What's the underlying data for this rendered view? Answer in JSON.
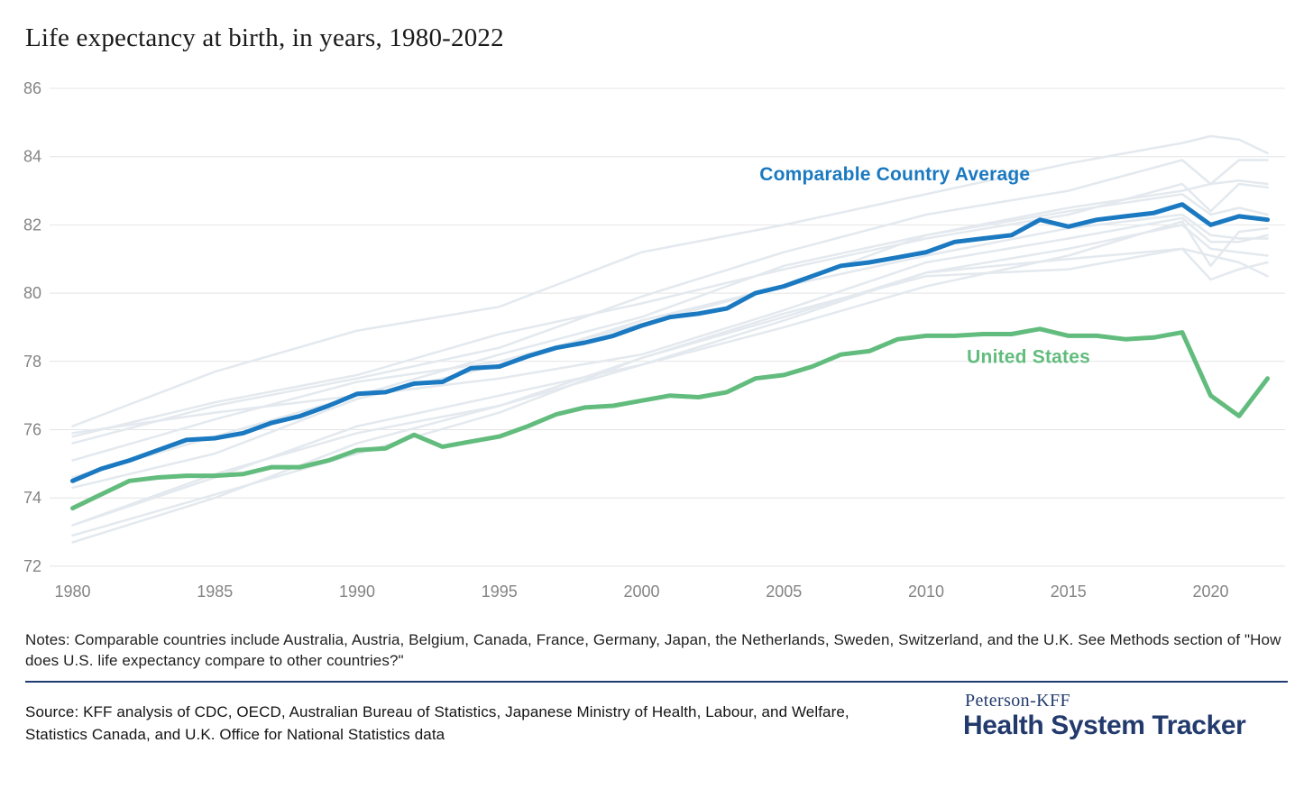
{
  "title": "Life expectancy at birth, in years, 1980-2022",
  "notes": "Notes: Comparable countries include Australia, Austria, Belgium, Canada, France, Germany, Japan, the Netherlands, Sweden, Switzerland, and the U.K. See Methods section of \"How does U.S. life expectancy compare to other countries?\"",
  "source": "Source: KFF analysis of CDC, OECD, Australian Bureau of Statistics, Japanese Ministry of Health, Labour, and Welfare, Statistics Canada, and U.K. Office for National Statistics data",
  "branding": {
    "top": "Peterson-KFF",
    "bottom": "Health System Tracker"
  },
  "colors": {
    "accent_blue": "#1a79c0",
    "accent_green": "#62bc7d",
    "background_line": "#e3e9ee",
    "gridline": "#e4e4e4",
    "tick_label": "#848484",
    "divider_navy": "#1e3c6e",
    "brand_navy": "#223a6c"
  },
  "chart_data": {
    "type": "line",
    "title": "Life expectancy at birth, in years, 1980-2022",
    "xlabel": "",
    "ylabel": "",
    "xlim": [
      1980,
      2022
    ],
    "ylim": [
      72,
      86
    ],
    "grid": "horizontal",
    "legend_position": "inline-annotations",
    "yticks": [
      86,
      84,
      82,
      80,
      78,
      76,
      74,
      72
    ],
    "xticks": [
      1980,
      1985,
      1990,
      1995,
      2000,
      2005,
      2010,
      2015,
      2020
    ],
    "x": [
      1980,
      1981,
      1982,
      1983,
      1984,
      1985,
      1986,
      1987,
      1988,
      1989,
      1990,
      1991,
      1992,
      1993,
      1994,
      1995,
      1996,
      1997,
      1998,
      1999,
      2000,
      2001,
      2002,
      2003,
      2004,
      2005,
      2006,
      2007,
      2008,
      2009,
      2010,
      2011,
      2012,
      2013,
      2014,
      2015,
      2016,
      2017,
      2018,
      2019,
      2020,
      2021,
      2022
    ],
    "series": [
      {
        "name": "Comparable Country Average",
        "color": "#1a79c0",
        "values": [
          74.5,
          74.85,
          75.1,
          75.4,
          75.7,
          75.75,
          75.9,
          76.2,
          76.4,
          76.7,
          77.05,
          77.1,
          77.35,
          77.4,
          77.8,
          77.85,
          78.15,
          78.4,
          78.55,
          78.75,
          79.05,
          79.3,
          79.4,
          79.55,
          80.0,
          80.2,
          80.5,
          80.8,
          80.9,
          81.05,
          81.2,
          81.5,
          81.6,
          81.7,
          82.15,
          81.95,
          82.15,
          82.25,
          82.35,
          82.6,
          82.0,
          82.25,
          82.15
        ]
      },
      {
        "name": "United States",
        "color": "#62bc7d",
        "values": [
          73.7,
          74.1,
          74.5,
          74.6,
          74.65,
          74.65,
          74.7,
          74.9,
          74.9,
          75.1,
          75.4,
          75.45,
          75.85,
          75.5,
          75.65,
          75.8,
          76.1,
          76.45,
          76.65,
          76.7,
          76.85,
          77.0,
          76.95,
          77.1,
          77.5,
          77.6,
          77.85,
          78.2,
          78.3,
          78.65,
          78.75,
          78.75,
          78.8,
          78.8,
          78.95,
          78.75,
          78.75,
          78.65,
          78.7,
          78.85,
          77.0,
          76.4,
          77.5
        ]
      }
    ],
    "background_series": {
      "description": "Individual comparable countries (unlabeled light lines)",
      "color": "#e3e9ee",
      "keypoint_years": [
        1980,
        1985,
        1990,
        1995,
        2000,
        2005,
        2010,
        2015,
        2019,
        2020,
        2021,
        2022
      ],
      "countries": [
        {
          "name": "Japan",
          "values": [
            76.1,
            77.7,
            78.9,
            79.6,
            81.2,
            82.0,
            82.9,
            83.8,
            84.4,
            84.6,
            84.5,
            84.1
          ]
        },
        {
          "name": "Switzerland",
          "values": [
            75.6,
            76.7,
            77.5,
            78.4,
            79.9,
            81.2,
            82.3,
            83.0,
            83.9,
            83.2,
            83.9,
            83.9
          ]
        },
        {
          "name": "Sweden",
          "values": [
            75.8,
            76.8,
            77.6,
            78.8,
            79.7,
            80.7,
            81.6,
            82.3,
            83.2,
            82.4,
            83.2,
            83.1
          ]
        },
        {
          "name": "Netherlands",
          "values": [
            75.9,
            76.5,
            77.0,
            77.5,
            78.2,
            79.5,
            80.9,
            81.6,
            82.2,
            81.5,
            81.5,
            81.7
          ]
        },
        {
          "name": "Australia",
          "values": [
            74.6,
            75.8,
            77.0,
            78.2,
            79.3,
            80.8,
            81.7,
            82.5,
            83.0,
            83.2,
            83.3,
            83.2
          ]
        },
        {
          "name": "France",
          "values": [
            74.3,
            75.3,
            76.9,
            77.9,
            79.2,
            80.2,
            81.7,
            82.4,
            82.9,
            82.3,
            82.5,
            82.3
          ]
        },
        {
          "name": "Canada",
          "values": [
            75.1,
            76.3,
            77.4,
            78.0,
            79.1,
            80.2,
            81.1,
            81.9,
            82.3,
            81.7,
            81.6,
            81.6
          ]
        },
        {
          "name": "Belgium",
          "values": [
            73.2,
            74.6,
            76.1,
            77.0,
            77.9,
            79.0,
            80.2,
            81.1,
            82.1,
            80.8,
            81.8,
            81.9
          ]
        },
        {
          "name": "Austria",
          "values": [
            72.7,
            74.0,
            75.6,
            76.7,
            78.1,
            79.3,
            80.6,
            81.3,
            82.0,
            81.3,
            81.2,
            81.1
          ]
        },
        {
          "name": "Germany",
          "values": [
            72.9,
            74.1,
            75.3,
            76.5,
            78.1,
            79.4,
            80.5,
            80.7,
            81.3,
            81.1,
            80.9,
            80.5
          ]
        },
        {
          "name": "United Kingdom",
          "values": [
            73.2,
            74.7,
            75.9,
            76.7,
            77.9,
            79.2,
            80.6,
            81.0,
            81.3,
            80.4,
            80.7,
            80.9
          ]
        }
      ]
    },
    "annotations": [
      {
        "text": "Comparable Country Average",
        "x": 2008.9,
        "y": 83.3,
        "color": "#1a79c0"
      },
      {
        "text": "United States",
        "x": 2013.6,
        "y": 77.95,
        "color": "#62bc7d"
      }
    ]
  }
}
